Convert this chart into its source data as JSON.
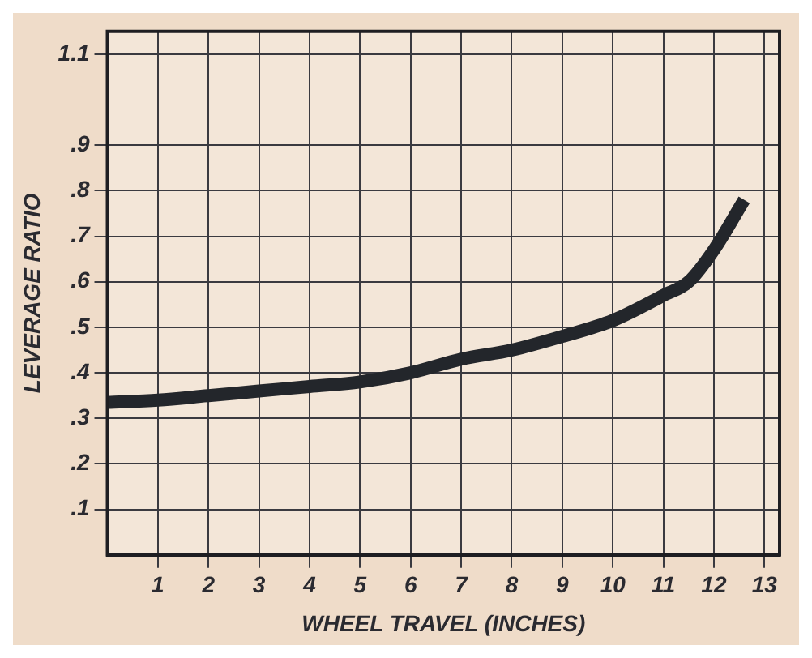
{
  "chart_data": {
    "type": "line",
    "xlabel": "WHEEL TRAVEL (INCHES)",
    "ylabel": "LEVERAGE RATIO",
    "x": [
      0,
      1,
      2,
      3,
      4,
      5,
      6,
      7,
      8,
      9,
      10,
      11,
      11.5,
      12,
      12.6
    ],
    "series": [
      {
        "color": "#23262b",
        "values": [
          0.335,
          0.34,
          0.35,
          0.36,
          0.37,
          0.38,
          0.4,
          0.43,
          0.45,
          0.48,
          0.515,
          0.57,
          0.6,
          0.67,
          0.78
        ]
      }
    ],
    "xlim": [
      0,
      13.3
    ],
    "xticks": [
      1,
      2,
      3,
      4,
      5,
      6,
      7,
      8,
      9,
      10,
      11,
      12,
      13
    ],
    "ylim": [
      0,
      1.15
    ],
    "yticks": [
      {
        "value": 0.1,
        "label": ".1"
      },
      {
        "value": 0.2,
        "label": ".2"
      },
      {
        "value": 0.3,
        "label": ".3"
      },
      {
        "value": 0.4,
        "label": ".4"
      },
      {
        "value": 0.5,
        "label": ".5"
      },
      {
        "value": 0.6,
        "label": ".6"
      },
      {
        "value": 0.7,
        "label": ".7"
      },
      {
        "value": 0.8,
        "label": ".8"
      },
      {
        "value": 0.9,
        "label": ".9"
      },
      1.1
    ],
    "grid": true,
    "marker": "none",
    "line_style": "solid",
    "legend": false
  }
}
